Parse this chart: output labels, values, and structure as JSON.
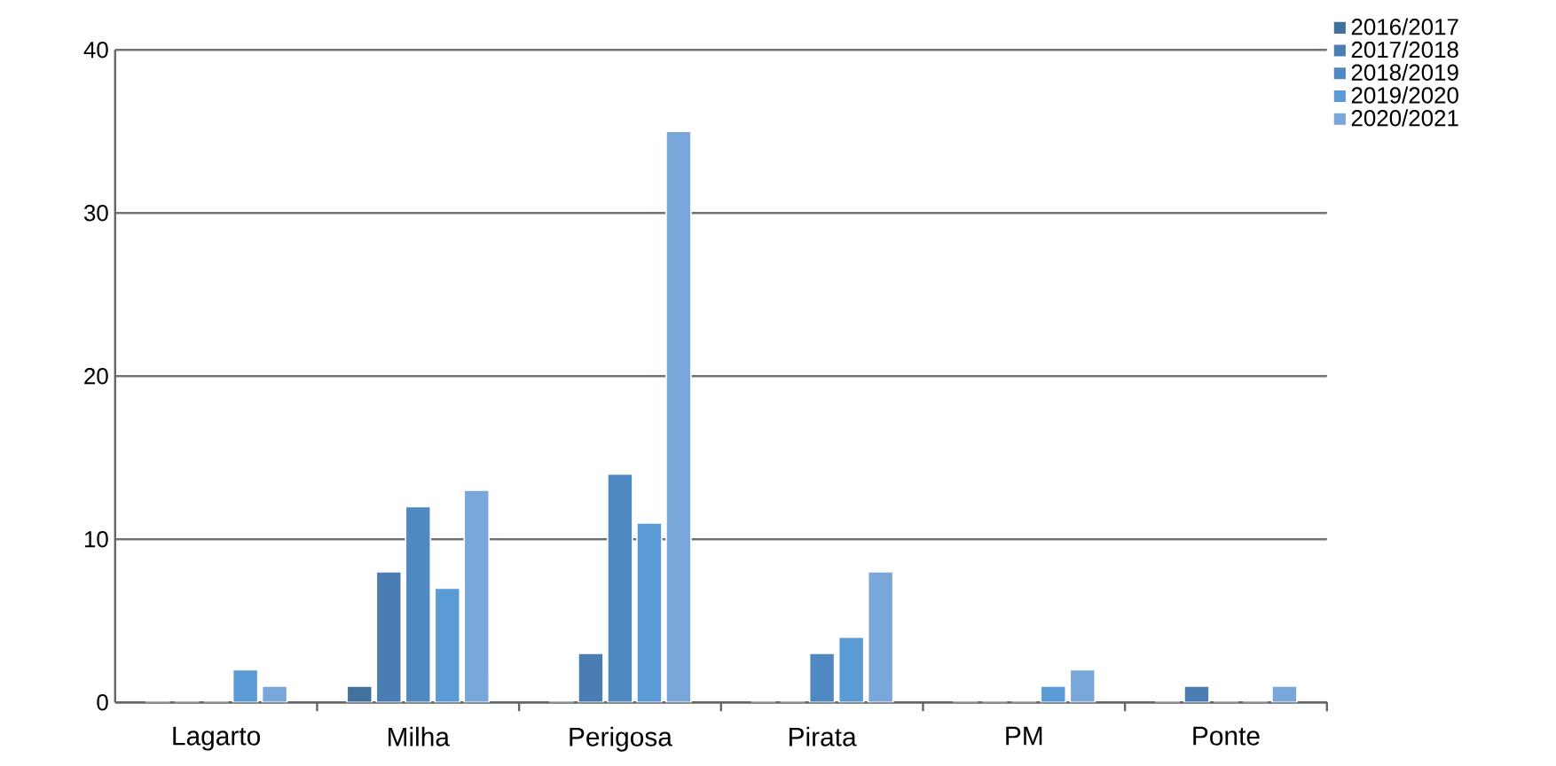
{
  "chart_data": {
    "type": "bar",
    "categories": [
      "Lagarto",
      "Milha",
      "Perigosa",
      "Pirata",
      "PM",
      "Ponte"
    ],
    "series": [
      {
        "name": "2016/2017",
        "color": "#41719c",
        "values": [
          0,
          1,
          0,
          0,
          0,
          0
        ]
      },
      {
        "name": "2017/2018",
        "color": "#4a7eb2",
        "values": [
          0,
          8,
          3,
          0,
          0,
          1
        ]
      },
      {
        "name": "2018/2019",
        "color": "#5089c2",
        "values": [
          0,
          12,
          14,
          3,
          0,
          0
        ]
      },
      {
        "name": "2019/2020",
        "color": "#5b9bd5",
        "values": [
          2,
          7,
          11,
          4,
          1,
          0
        ]
      },
      {
        "name": "2020/2021",
        "color": "#7aa7da",
        "values": [
          1,
          13,
          35,
          8,
          2,
          1
        ]
      }
    ],
    "ylim": [
      0,
      40
    ],
    "yticks": [
      0,
      10,
      20,
      30,
      40
    ],
    "grid": "y",
    "legend": "top right"
  }
}
